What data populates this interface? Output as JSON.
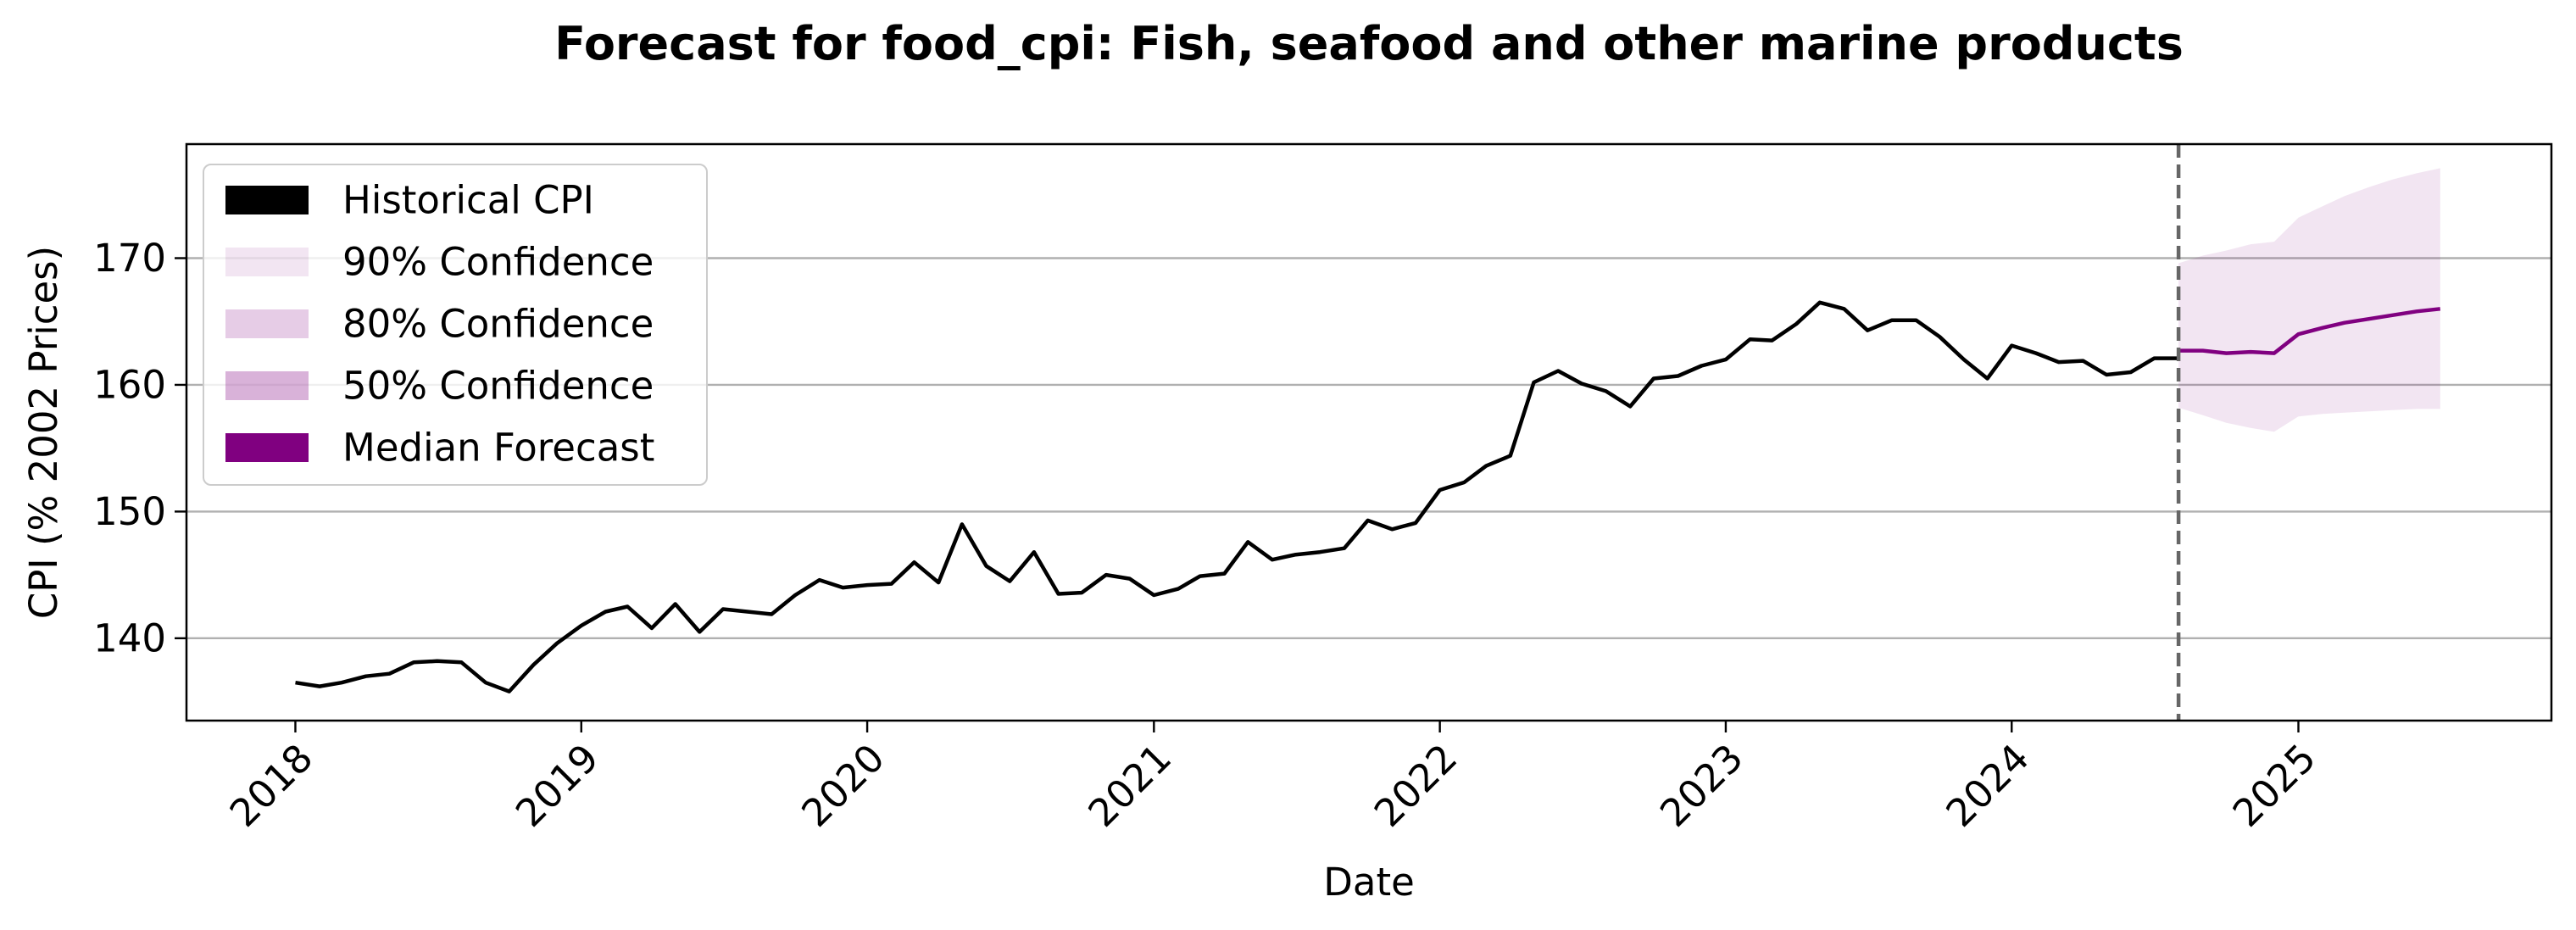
{
  "chart_data": {
    "type": "line",
    "title": "Forecast for food_cpi: Fish, seafood and other marine products",
    "xlabel": "Date",
    "ylabel": "CPI (% 2002 Prices)",
    "xlim": [
      "2017-08-15",
      "2025-11-20"
    ],
    "ylim": [
      133.5,
      179.0
    ],
    "x_ticks": [
      "2018",
      "2019",
      "2020",
      "2021",
      "2022",
      "2023",
      "2024",
      "2025"
    ],
    "y_ticks": [
      140,
      150,
      160,
      170
    ],
    "grid": "horizontal",
    "legend_position": "top-left",
    "forecast_start": "2024-08-01",
    "legend": [
      {
        "label": "Historical CPI",
        "color": "#000000",
        "opacity": 1.0
      },
      {
        "label": "90% Confidence",
        "color": "#800080",
        "opacity": 0.1
      },
      {
        "label": "80% Confidence",
        "color": "#800080",
        "opacity": 0.2
      },
      {
        "label": "50% Confidence",
        "color": "#800080",
        "opacity": 0.3
      },
      {
        "label": "Median Forecast",
        "color": "#800080",
        "opacity": 1.0
      }
    ],
    "colors": {
      "historical": "#000000",
      "forecast": "#800080",
      "vline": "#666666",
      "grid": "#b0b0b0"
    },
    "historical": {
      "name": "Historical CPI",
      "x": [
        "2018-01",
        "2018-02",
        "2018-03",
        "2018-04",
        "2018-05",
        "2018-06",
        "2018-07",
        "2018-08",
        "2018-09",
        "2018-10",
        "2018-11",
        "2018-12",
        "2019-01",
        "2019-02",
        "2019-03",
        "2019-04",
        "2019-05",
        "2019-06",
        "2019-07",
        "2019-08",
        "2019-09",
        "2019-10",
        "2019-11",
        "2019-12",
        "2020-01",
        "2020-02",
        "2020-03",
        "2020-04",
        "2020-05",
        "2020-06",
        "2020-07",
        "2020-08",
        "2020-09",
        "2020-10",
        "2020-11",
        "2020-12",
        "2021-01",
        "2021-02",
        "2021-03",
        "2021-04",
        "2021-05",
        "2021-06",
        "2021-07",
        "2021-08",
        "2021-09",
        "2021-10",
        "2021-11",
        "2021-12",
        "2022-01",
        "2022-02",
        "2022-03",
        "2022-04",
        "2022-05",
        "2022-06",
        "2022-07",
        "2022-08",
        "2022-09",
        "2022-10",
        "2022-11",
        "2022-12",
        "2023-01",
        "2023-02",
        "2023-03",
        "2023-04",
        "2023-05",
        "2023-06",
        "2023-07",
        "2023-08",
        "2023-09",
        "2023-10",
        "2023-11",
        "2023-12",
        "2024-01",
        "2024-02",
        "2024-03",
        "2024-04",
        "2024-05",
        "2024-06",
        "2024-07",
        "2024-08"
      ],
      "y": [
        136.5,
        136.2,
        136.5,
        137.0,
        137.2,
        138.1,
        138.2,
        138.1,
        136.5,
        135.8,
        137.9,
        139.6,
        141.0,
        142.1,
        142.5,
        140.8,
        142.7,
        140.5,
        142.3,
        142.1,
        141.9,
        143.4,
        144.6,
        144.0,
        144.2,
        144.3,
        146.0,
        144.4,
        149.0,
        145.7,
        144.5,
        146.8,
        143.5,
        143.6,
        145.0,
        144.7,
        143.4,
        143.9,
        144.9,
        145.1,
        147.6,
        146.2,
        146.6,
        146.8,
        147.1,
        149.3,
        148.6,
        149.1,
        151.7,
        152.3,
        153.6,
        154.4,
        160.2,
        161.1,
        160.1,
        159.5,
        158.3,
        160.5,
        160.7,
        161.5,
        162.0,
        163.6,
        163.5,
        164.8,
        166.5,
        166.0,
        164.3,
        165.1,
        165.1,
        163.8,
        162.0,
        160.5,
        163.1,
        162.5,
        161.8,
        161.9,
        160.8,
        161.0,
        162.1,
        162.1
      ]
    },
    "forecast": {
      "name": "Median Forecast",
      "x": [
        "2024-08",
        "2024-09",
        "2024-10",
        "2024-11",
        "2024-12",
        "2025-01",
        "2025-02",
        "2025-03",
        "2025-04",
        "2025-05",
        "2025-06",
        "2025-07"
      ],
      "median": [
        162.7,
        162.7,
        162.5,
        162.6,
        162.5,
        164.0,
        164.5,
        164.9,
        165.2,
        165.5,
        165.8,
        166.0
      ],
      "band_90": {
        "name": "90% Confidence",
        "lower": [
          158.2,
          157.6,
          157.0,
          156.6,
          156.3,
          157.5,
          157.7,
          157.8,
          157.9,
          158.0,
          158.1,
          158.1
        ],
        "upper": [
          169.6,
          170.2,
          170.6,
          171.1,
          171.3,
          173.2,
          174.1,
          174.9,
          175.6,
          176.2,
          176.7,
          177.1
        ]
      }
    }
  }
}
